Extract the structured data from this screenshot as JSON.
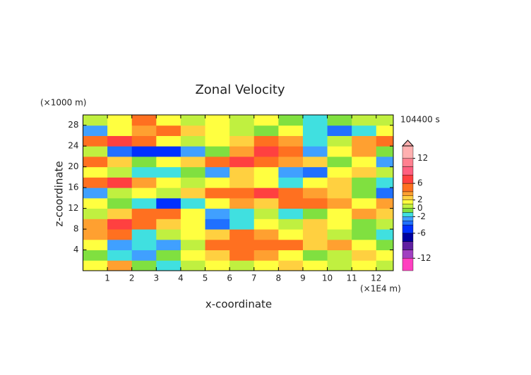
{
  "chart_data": {
    "type": "contour",
    "title": "Zonal Velocity",
    "x_label": "x-coordinate",
    "y_label": "z-coordinate",
    "x_unit": "(×1E4 m)",
    "y_unit": "(×1000 m)",
    "time_label": "104400 s",
    "xlim": [
      0,
      12.7
    ],
    "ylim": [
      0,
      30
    ],
    "xticks": [
      1,
      2,
      3,
      4,
      5,
      6,
      7,
      8,
      9,
      10,
      11,
      12
    ],
    "yticks": [
      4,
      8,
      12,
      16,
      20,
      24,
      28
    ],
    "x": [
      0.5,
      1.5,
      2.5,
      3.5,
      4.5,
      5.5,
      6.5,
      7.5,
      8.5,
      9.5,
      10.5,
      11.5,
      12.5
    ],
    "y": [
      1,
      3,
      5,
      7,
      9,
      11,
      13,
      15,
      17,
      19,
      21,
      23,
      25,
      27,
      29
    ],
    "values": [
      [
        1,
        3,
        -1,
        -2,
        0.5,
        1,
        0.5,
        1,
        2,
        1,
        0.5,
        1,
        0.5
      ],
      [
        -1,
        -2,
        -3,
        -1,
        1,
        2,
        4,
        3,
        1,
        -1,
        0.5,
        2,
        1
      ],
      [
        1,
        -3,
        -2,
        -3,
        0.5,
        4,
        5,
        5,
        4,
        2,
        3,
        1,
        -1
      ],
      [
        3,
        4,
        -2,
        0.5,
        1,
        2,
        4,
        3,
        1,
        2,
        0.5,
        -1,
        -2
      ],
      [
        3,
        6,
        4,
        2,
        1,
        -4,
        -2,
        1,
        0.5,
        2,
        1,
        -1,
        0.5
      ],
      [
        0.5,
        2,
        4,
        5,
        1,
        -3,
        -2,
        0.5,
        -2,
        -1,
        1,
        3,
        2
      ],
      [
        1,
        -1,
        -2,
        -5,
        -2,
        1,
        3,
        2,
        5,
        4,
        3,
        1,
        3
      ],
      [
        -3,
        0.5,
        1,
        0.5,
        2,
        4,
        5,
        6,
        4,
        3,
        2,
        -1,
        -4
      ],
      [
        5,
        6,
        3,
        1,
        0.5,
        1,
        2,
        1,
        -2,
        1,
        2,
        -1,
        -2
      ],
      [
        1,
        0.5,
        -2,
        -2,
        -1,
        -3,
        2,
        1,
        -3,
        -4,
        1,
        2,
        0.5
      ],
      [
        4,
        2,
        -1,
        1,
        2,
        5,
        6,
        5,
        3,
        2,
        -1,
        1,
        -3
      ],
      [
        0.5,
        -4,
        -6,
        -5,
        -3,
        -1,
        3,
        6,
        5,
        -3,
        1,
        3,
        -1
      ],
      [
        5,
        6,
        4,
        1,
        0.5,
        1,
        2,
        4,
        3,
        -2,
        0.5,
        3,
        5
      ],
      [
        -3,
        1,
        3,
        4,
        2,
        1,
        0.5,
        -1,
        1,
        -2,
        -4,
        -2,
        1
      ],
      [
        0.5,
        1,
        4,
        1,
        0.5,
        1,
        0.5,
        1,
        -1,
        -2,
        -1,
        0.5,
        0.5
      ]
    ],
    "colorbar": {
      "levels": [
        -15,
        -12,
        -10,
        -8,
        -6,
        -4,
        -3,
        -2,
        -1,
        0,
        1,
        2,
        3,
        4,
        6,
        8,
        10,
        12,
        15
      ],
      "colors": [
        "#ff40c0",
        "#a040c0",
        "#6020a0",
        "#0000a0",
        "#0030ff",
        "#2070ff",
        "#40a0ff",
        "#40e0e0",
        "#80e040",
        "#c0f040",
        "#ffff40",
        "#ffd040",
        "#ffa030",
        "#ff7020",
        "#ff4040",
        "#ff6080",
        "#ff8090",
        "#ffb0b0"
      ],
      "ticks": [
        12,
        6,
        2,
        0,
        -2,
        -6,
        -12
      ]
    }
  }
}
